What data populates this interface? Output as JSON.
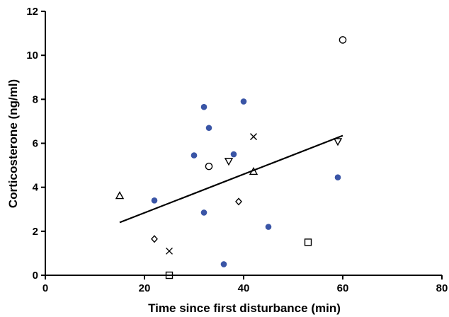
{
  "chart_data": {
    "type": "scatter",
    "title": "",
    "xlabel": "Time since first disturbance (min)",
    "ylabel": "Corticosterone (ng/ml)",
    "xlim": [
      0,
      80
    ],
    "ylim": [
      0,
      12
    ],
    "x_ticks": [
      0,
      20,
      40,
      60,
      80
    ],
    "y_ticks": [
      0,
      2,
      4,
      6,
      8,
      10,
      12
    ],
    "grid": false,
    "colors": {
      "filled_points": "#3a55a6",
      "markers": "#000000",
      "axis": "#000000"
    },
    "series": [
      {
        "marker": "filled-circle",
        "points": [
          {
            "x": 22,
            "y": 3.4
          },
          {
            "x": 30,
            "y": 5.45
          },
          {
            "x": 32,
            "y": 7.65
          },
          {
            "x": 32,
            "y": 2.85
          },
          {
            "x": 33,
            "y": 6.7
          },
          {
            "x": 36,
            "y": 0.5
          },
          {
            "x": 38,
            "y": 5.5
          },
          {
            "x": 40,
            "y": 7.9
          },
          {
            "x": 45,
            "y": 2.2
          },
          {
            "x": 59,
            "y": 4.45
          }
        ]
      },
      {
        "marker": "open-circle",
        "points": [
          {
            "x": 33,
            "y": 4.95
          },
          {
            "x": 60,
            "y": 10.7
          }
        ]
      },
      {
        "marker": "open-triangle-up",
        "points": [
          {
            "x": 15,
            "y": 3.6
          },
          {
            "x": 42,
            "y": 4.7
          }
        ]
      },
      {
        "marker": "open-triangle-down",
        "points": [
          {
            "x": 37,
            "y": 5.2
          },
          {
            "x": 59,
            "y": 6.1
          }
        ]
      },
      {
        "marker": "open-diamond",
        "points": [
          {
            "x": 22,
            "y": 1.65
          },
          {
            "x": 39,
            "y": 3.35
          }
        ]
      },
      {
        "marker": "cross",
        "points": [
          {
            "x": 25,
            "y": 1.1
          },
          {
            "x": 42,
            "y": 6.3
          }
        ]
      },
      {
        "marker": "open-square",
        "points": [
          {
            "x": 25,
            "y": 0.0
          },
          {
            "x": 53,
            "y": 1.5
          }
        ]
      }
    ],
    "trendline": {
      "type": "linear",
      "x": [
        15,
        60
      ],
      "y": [
        2.4,
        6.35
      ]
    }
  }
}
